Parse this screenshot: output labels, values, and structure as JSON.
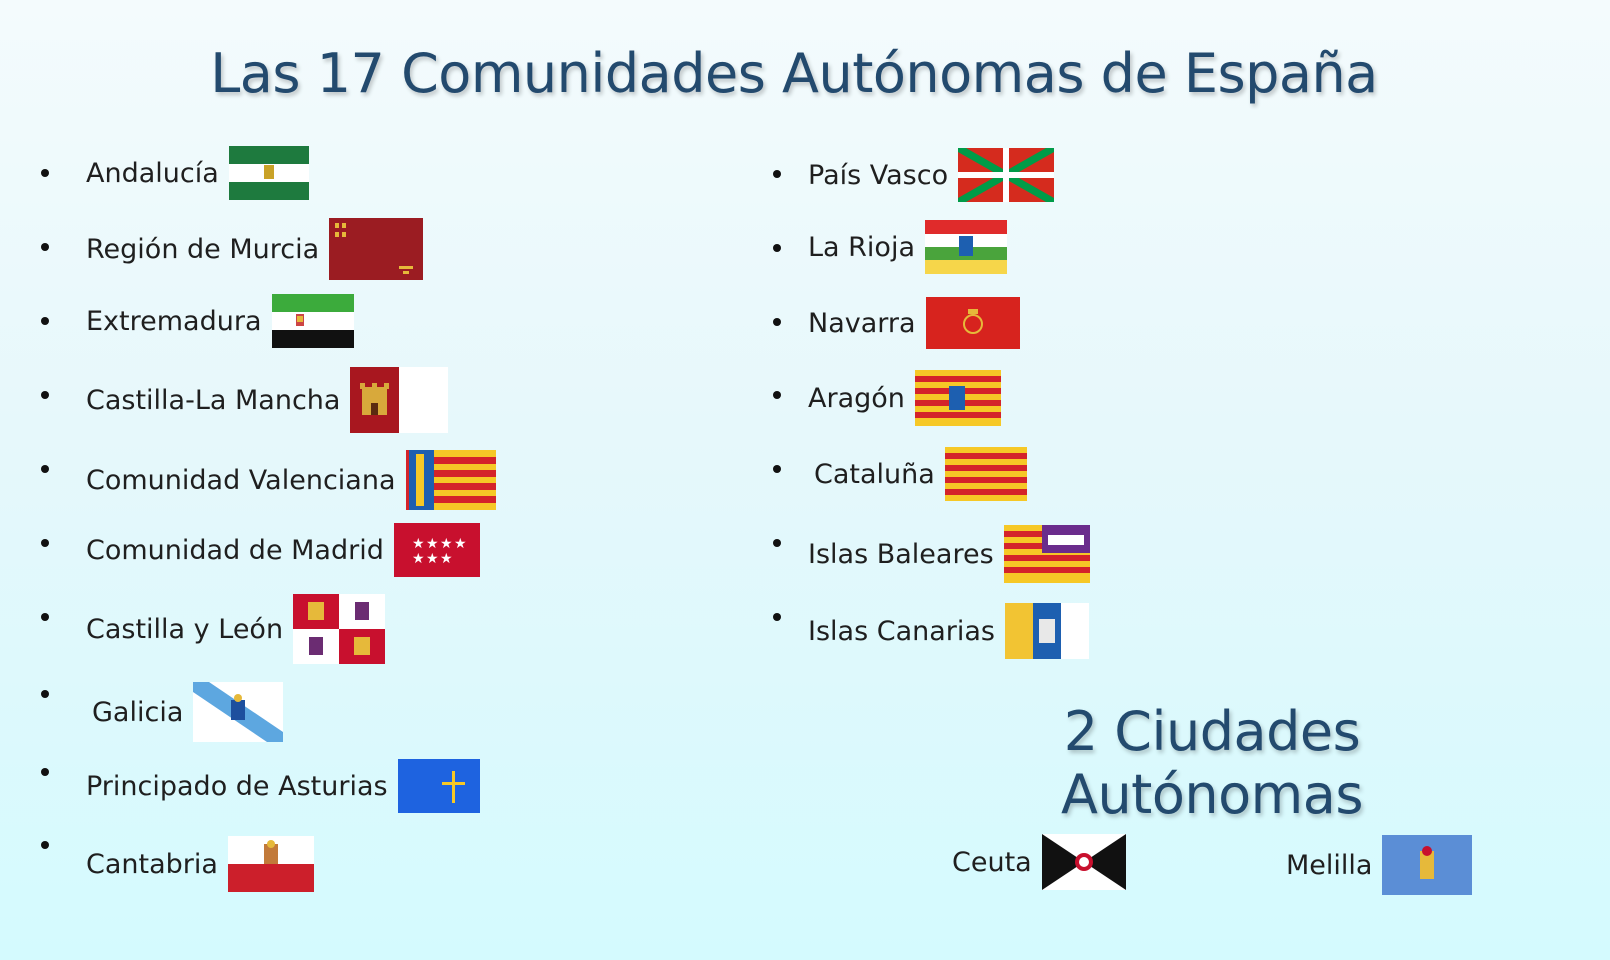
{
  "title": "Las 17 Comunidades Autónomas de España",
  "subtitle": "2 Ciudades Autónomas",
  "communities_left": [
    {
      "name": "Andalucía",
      "flag": "andalucia-flag"
    },
    {
      "name": "Región de Murcia",
      "flag": "murcia-flag"
    },
    {
      "name": "Extremadura",
      "flag": "extremadura-flag"
    },
    {
      "name": "Castilla-La Mancha",
      "flag": "castilla-la-mancha-flag"
    },
    {
      "name": "Comunidad Valenciana",
      "flag": "valenciana-flag"
    },
    {
      "name": "Comunidad de Madrid",
      "flag": "madrid-flag"
    },
    {
      "name": "Castilla y León",
      "flag": "castilla-y-leon-flag"
    },
    {
      "name": "Galicia",
      "flag": "galicia-flag"
    },
    {
      "name": "Principado de Asturias",
      "flag": "asturias-flag"
    },
    {
      "name": "Cantabria",
      "flag": "cantabria-flag"
    }
  ],
  "communities_right": [
    {
      "name": "País Vasco",
      "flag": "pais-vasco-flag"
    },
    {
      "name": "La Rioja",
      "flag": "la-rioja-flag"
    },
    {
      "name": "Navarra",
      "flag": "navarra-flag"
    },
    {
      "name": "Aragón",
      "flag": "aragon-flag"
    },
    {
      "name": "Cataluña",
      "flag": "cataluna-flag"
    },
    {
      "name": "Islas Baleares",
      "flag": "islas-baleares-flag"
    },
    {
      "name": "Islas Canarias",
      "flag": "islas-canarias-flag"
    }
  ],
  "cities": [
    {
      "name": "Ceuta",
      "flag": "ceuta-flag"
    },
    {
      "name": "Melilla",
      "flag": "melilla-flag"
    }
  ],
  "colors": {
    "title": "#234a6e",
    "background_top": "#f4fbfd",
    "background_bottom": "#d4fafe"
  }
}
